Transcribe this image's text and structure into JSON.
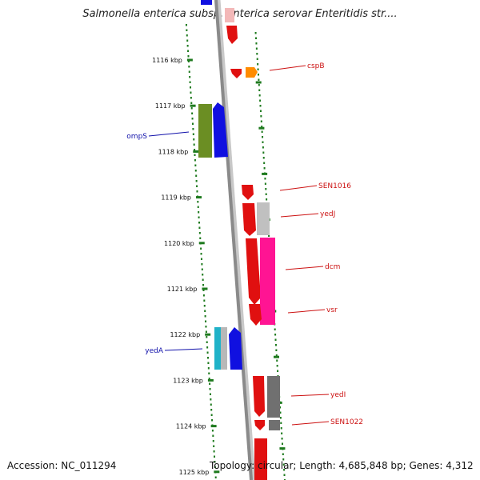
{
  "title": "Salmonella enterica subsp. enterica serovar Enteritidis str....",
  "footer": {
    "accession": "Accession: NC_011294",
    "summary": "Topology: circular; Length: 4,685,848 bp; Genes: 4,312"
  },
  "colors": {
    "backbone": "#8a8a8a",
    "tick": "#1e7a1e",
    "forward_label": "#cc1111",
    "reverse_label": "#1111aa"
  },
  "ticks": [
    "1116 kbp",
    "1117 kbp",
    "1118 kbp",
    "1119 kbp",
    "1120 kbp",
    "1121 kbp",
    "1122 kbp",
    "1123 kbp",
    "1124 kbp",
    "1125 kbp"
  ],
  "genes": [
    {
      "name": "cspB",
      "strand": "forward"
    },
    {
      "name": "ompS",
      "strand": "reverse"
    },
    {
      "name": "SEN1016",
      "strand": "forward"
    },
    {
      "name": "yedJ",
      "strand": "forward"
    },
    {
      "name": "dcm",
      "strand": "forward"
    },
    {
      "name": "vsr",
      "strand": "forward"
    },
    {
      "name": "yedA",
      "strand": "reverse"
    },
    {
      "name": "yedI",
      "strand": "forward"
    },
    {
      "name": "SEN1022",
      "strand": "forward"
    }
  ]
}
